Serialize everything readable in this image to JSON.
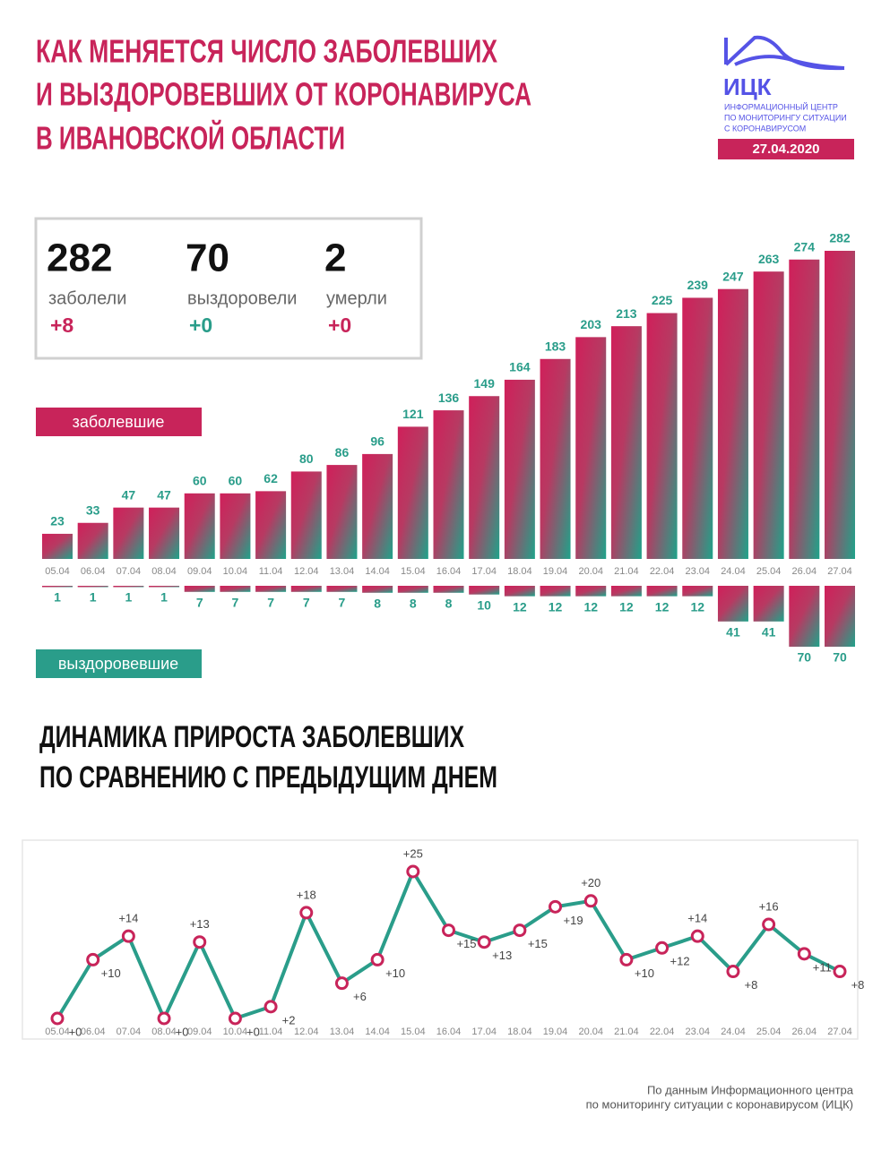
{
  "header": {
    "title": [
      "КАК МЕНЯЕТСЯ ЧИСЛО ЗАБОЛЕВШИХ",
      "И ВЫЗДОРОВЕВШИХ ОТ КОРОНАВИРУСА",
      "В ИВАНОВСКОЙ ОБЛАСТИ"
    ],
    "logo": "ИЦК",
    "logo_lines": [
      "ИНФОРМАЦИОННЫЙ ЦЕНТР",
      "ПО МОНИТОРИНГУ СИТУАЦИИ",
      "С КОРОНАВИРУСОМ"
    ],
    "date": "27.04.2020"
  },
  "stats": [
    {
      "value": 282,
      "label": "заболели",
      "change": "+8"
    },
    {
      "value": 70,
      "label": "выздоровели",
      "change": "+0"
    },
    {
      "value": 2,
      "label": "умерли",
      "change": "+0"
    }
  ],
  "chart_data": [
    {
      "type": "bar",
      "categories": [
        "05.04",
        "06.04",
        "07.04",
        "08.04",
        "09.04",
        "10.04",
        "11.04",
        "12.04",
        "13.04",
        "14.04",
        "15.04",
        "16.04",
        "17.04",
        "18.04",
        "19.04",
        "20.04",
        "21.04",
        "22.04",
        "23.04",
        "24.04",
        "25.04",
        "26.04",
        "27.04"
      ],
      "series": [
        {
          "name": "заболевшие",
          "color": "#c8245a",
          "values": [
            23,
            33,
            47,
            47,
            60,
            60,
            62,
            80,
            86,
            96,
            121,
            136,
            149,
            164,
            183,
            203,
            213,
            225,
            239,
            247,
            263,
            274,
            282
          ]
        },
        {
          "name": "выздоровевшие",
          "color": "#2a9d8a",
          "values": [
            1,
            1,
            1,
            1,
            7,
            7,
            7,
            7,
            7,
            8,
            8,
            8,
            10,
            12,
            12,
            12,
            12,
            12,
            12,
            41,
            41,
            70,
            70
          ]
        }
      ]
    },
    {
      "type": "line",
      "title": [
        "ДИНАМИКА ПРИРОСТА ЗАБОЛЕВШИХ",
        "ПО СРАВНЕНИЮ С ПРЕДЫДУЩИМ ДНЕМ"
      ],
      "categories": [
        "05.04",
        "06.04",
        "07.04",
        "08.04",
        "09.04",
        "10.04",
        "11.04",
        "12.04",
        "13.04",
        "14.04",
        "15.04",
        "16.04",
        "17.04",
        "18.04",
        "19.04",
        "20.04",
        "21.04",
        "22.04",
        "23.04",
        "24.04",
        "25.04",
        "26.04",
        "27.04"
      ],
      "values": [
        0,
        10,
        14,
        0,
        13,
        0,
        2,
        18,
        6,
        10,
        25,
        15,
        13,
        15,
        19,
        20,
        10,
        12,
        14,
        8,
        16,
        11,
        8
      ],
      "value_labels": [
        "+0",
        "+10",
        "+14",
        "+0",
        "+13",
        "+0",
        "+2",
        "+18",
        "+6",
        "+10",
        "+25",
        "+15",
        "+13",
        "+15",
        "+19",
        "+20",
        "+10",
        "+12",
        "+14",
        "+8",
        "+16",
        "+11",
        "+8"
      ],
      "color": "#2a9d8a",
      "marker_color": "#c8245a"
    }
  ],
  "source": [
    "По данным Информационного центра",
    "по мониторингу ситуации с коронавирусом (ИЦК)"
  ]
}
